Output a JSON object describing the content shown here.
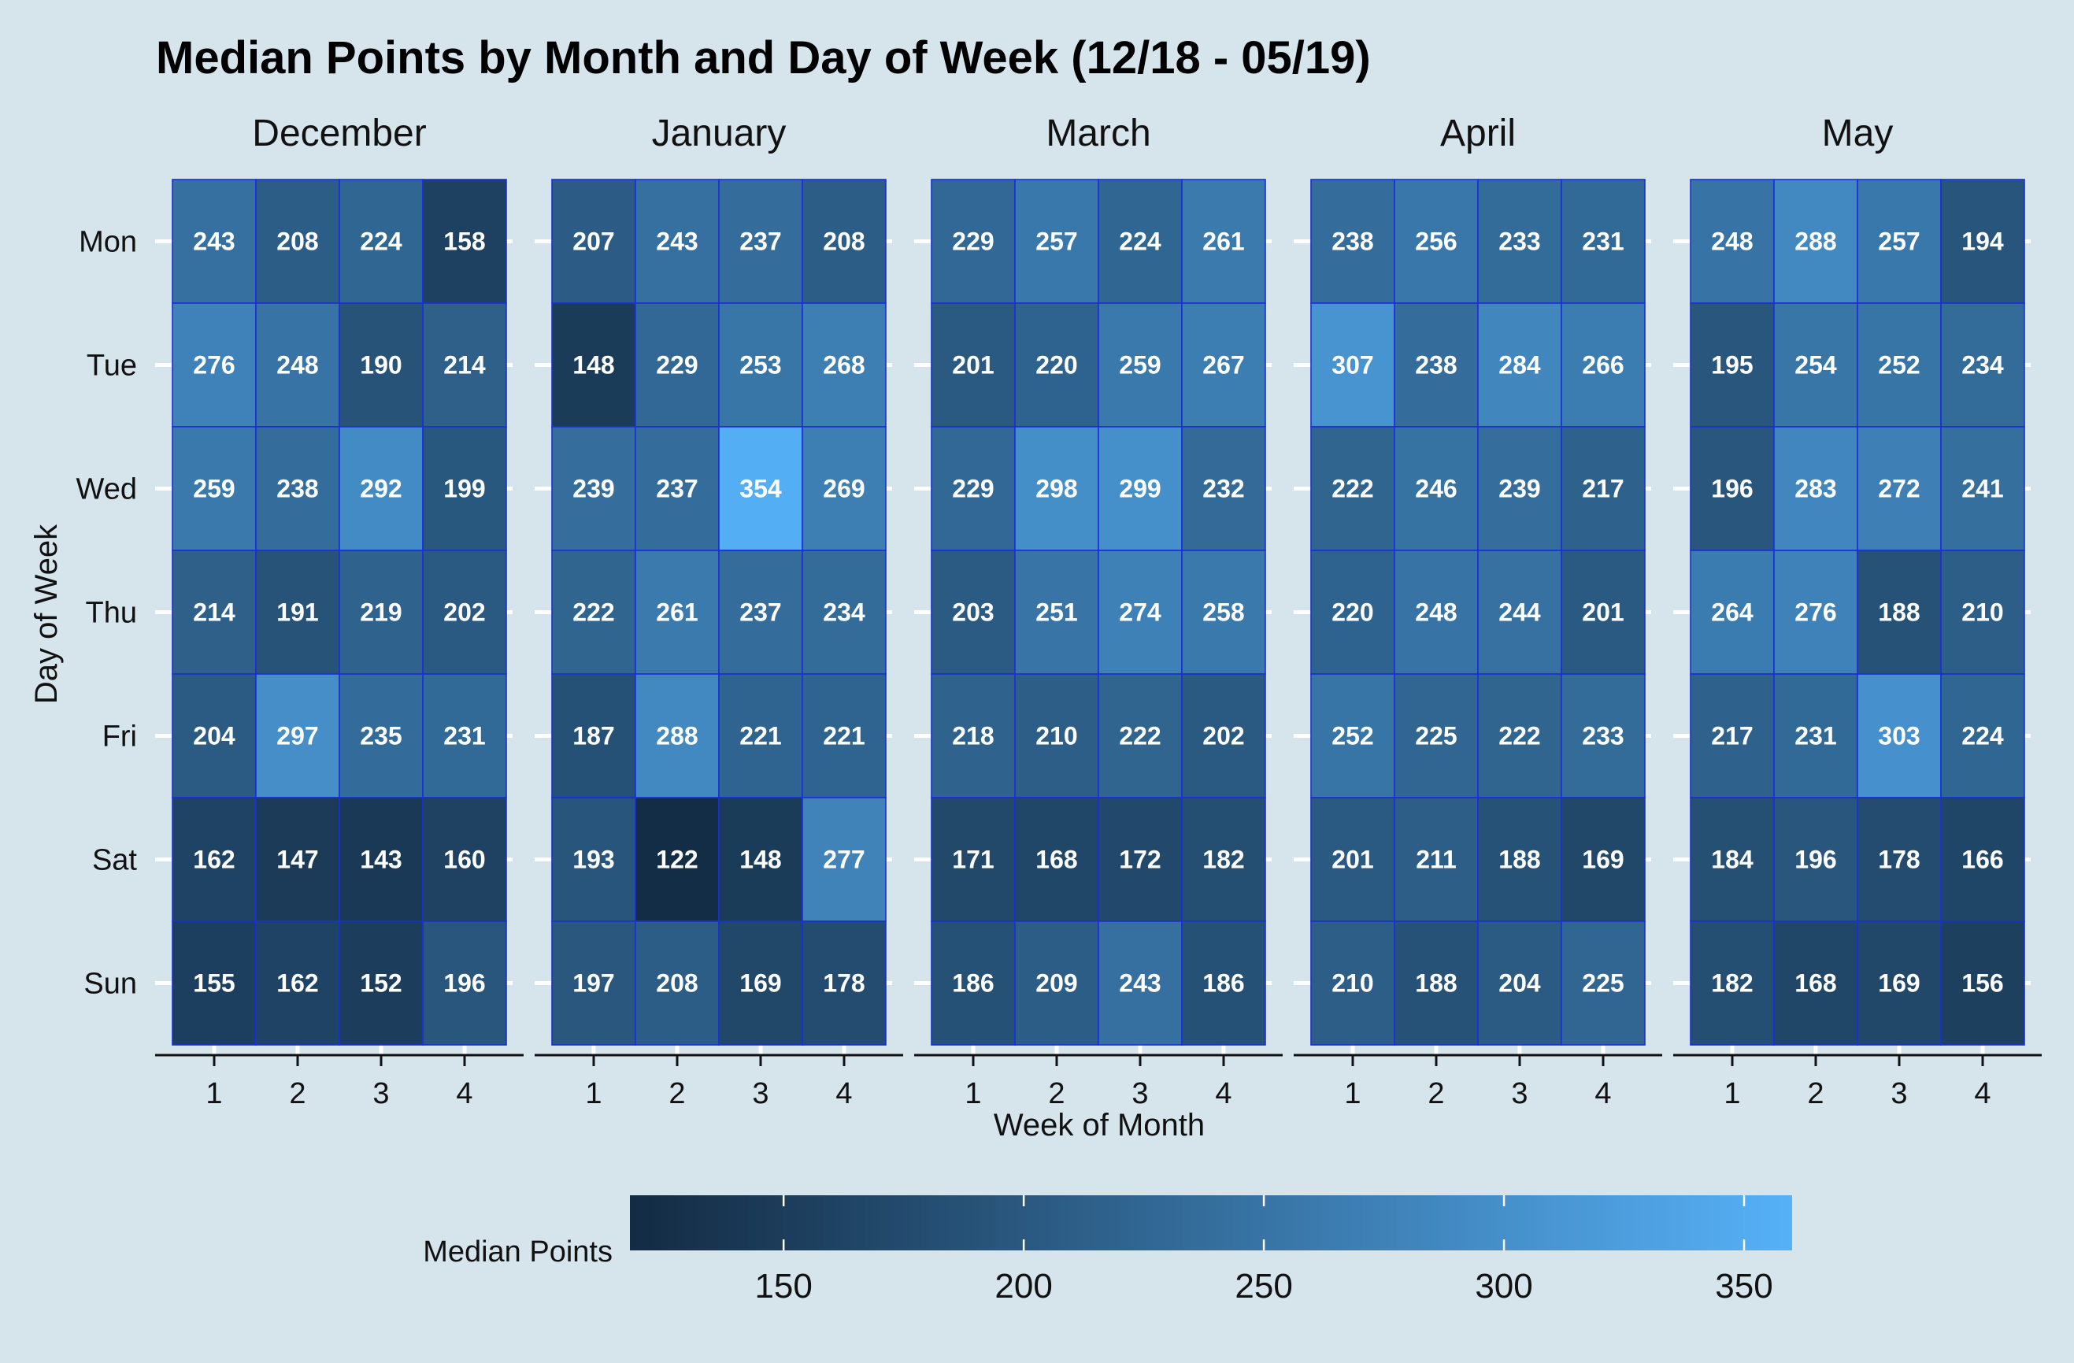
{
  "chart_data": {
    "type": "heatmap",
    "title": "Median Points by Month and Day of Week (12/18 - 05/19)",
    "xlabel": "Week of Month",
    "ylabel": "Day of Week",
    "weeks": [
      "1",
      "2",
      "3",
      "4"
    ],
    "days": [
      "Mon",
      "Tue",
      "Wed",
      "Thu",
      "Fri",
      "Sat",
      "Sun"
    ],
    "legend": {
      "title": "Median Points",
      "ticks": [
        "150",
        "200",
        "250",
        "300",
        "350"
      ],
      "range": [
        118,
        360
      ],
      "low_color": "#132b43",
      "high_color": "#56b1f7"
    },
    "cell_border_color": "#1a2fd6",
    "grid": true,
    "facets": [
      {
        "month": "December",
        "values": [
          [
            243,
            208,
            224,
            158
          ],
          [
            276,
            248,
            190,
            214
          ],
          [
            259,
            238,
            292,
            199
          ],
          [
            214,
            191,
            219,
            202
          ],
          [
            204,
            297,
            235,
            231
          ],
          [
            162,
            147,
            143,
            160
          ],
          [
            155,
            162,
            152,
            196
          ]
        ]
      },
      {
        "month": "January",
        "values": [
          [
            207,
            243,
            237,
            208
          ],
          [
            148,
            229,
            253,
            268
          ],
          [
            239,
            237,
            354,
            269
          ],
          [
            222,
            261,
            237,
            234
          ],
          [
            187,
            288,
            221,
            221
          ],
          [
            193,
            122,
            148,
            277
          ],
          [
            197,
            208,
            169,
            178
          ]
        ]
      },
      {
        "month": "March",
        "values": [
          [
            229,
            257,
            224,
            261
          ],
          [
            201,
            220,
            259,
            267
          ],
          [
            229,
            298,
            299,
            232
          ],
          [
            203,
            251,
            274,
            258
          ],
          [
            218,
            210,
            222,
            202
          ],
          [
            171,
            168,
            172,
            182
          ],
          [
            186,
            209,
            243,
            186
          ]
        ]
      },
      {
        "month": "April",
        "values": [
          [
            238,
            256,
            233,
            231
          ],
          [
            307,
            238,
            284,
            266
          ],
          [
            222,
            246,
            239,
            217
          ],
          [
            220,
            248,
            244,
            201
          ],
          [
            252,
            225,
            222,
            233
          ],
          [
            201,
            211,
            188,
            169
          ],
          [
            210,
            188,
            204,
            225
          ]
        ]
      },
      {
        "month": "May",
        "values": [
          [
            248,
            288,
            257,
            194
          ],
          [
            195,
            254,
            252,
            234
          ],
          [
            196,
            283,
            272,
            241
          ],
          [
            264,
            276,
            188,
            210
          ],
          [
            217,
            231,
            303,
            224
          ],
          [
            184,
            196,
            178,
            166
          ],
          [
            182,
            168,
            169,
            156
          ]
        ]
      }
    ]
  }
}
